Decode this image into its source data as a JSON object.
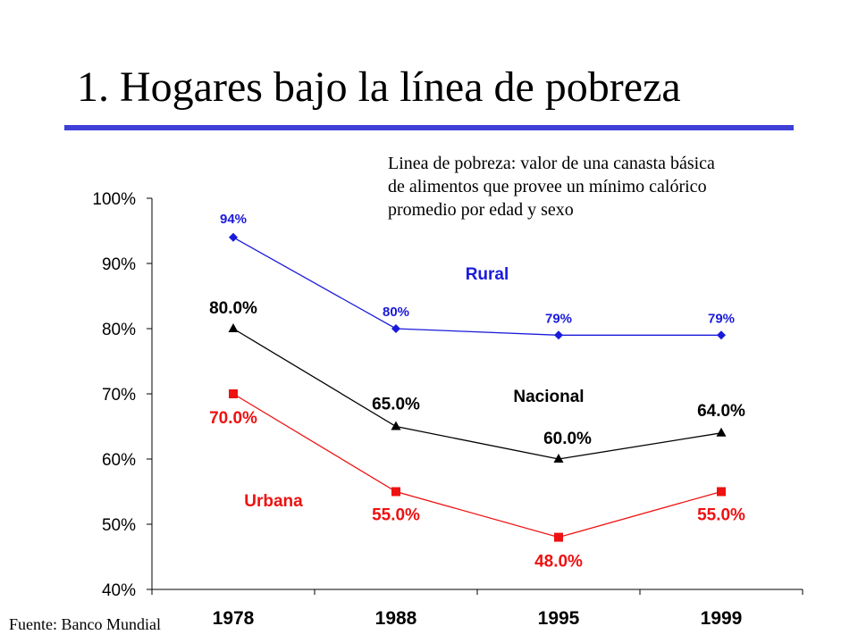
{
  "slide": {
    "title": "1. Hogares bajo la línea de pobreza",
    "note_lines": [
      "Linea de pobreza: valor de una canasta básica",
      "de alimentos que provee un mínimo calórico",
      "promedio por edad y sexo"
    ],
    "source": "Fuente: Banco Mundial"
  },
  "chart_data": {
    "type": "line",
    "title": "",
    "xlabel": "",
    "ylabel": "",
    "categories": [
      "1978",
      "1988",
      "1995",
      "1999"
    ],
    "yticks": [
      "40%",
      "50%",
      "60%",
      "70%",
      "80%",
      "90%",
      "100%"
    ],
    "ylim": [
      40,
      100
    ],
    "grid": false,
    "series": [
      {
        "name": "Rural",
        "values": [
          94,
          80,
          79,
          79
        ],
        "data_labels": [
          "94%",
          "80%",
          "79%",
          "79%"
        ],
        "color": "#1a1adc",
        "marker": "diamond"
      },
      {
        "name": "Nacional",
        "values": [
          80,
          65,
          60,
          64
        ],
        "data_labels": [
          "80.0%",
          "65.0%",
          "60.0%",
          "64.0%"
        ],
        "color": "#000000",
        "marker": "triangle"
      },
      {
        "name": "Urbana",
        "values": [
          70,
          55,
          48,
          55
        ],
        "data_labels": [
          "70.0%",
          "55.0%",
          "48.0%",
          "55.0%"
        ],
        "color": "#ee1111",
        "marker": "square"
      }
    ]
  }
}
